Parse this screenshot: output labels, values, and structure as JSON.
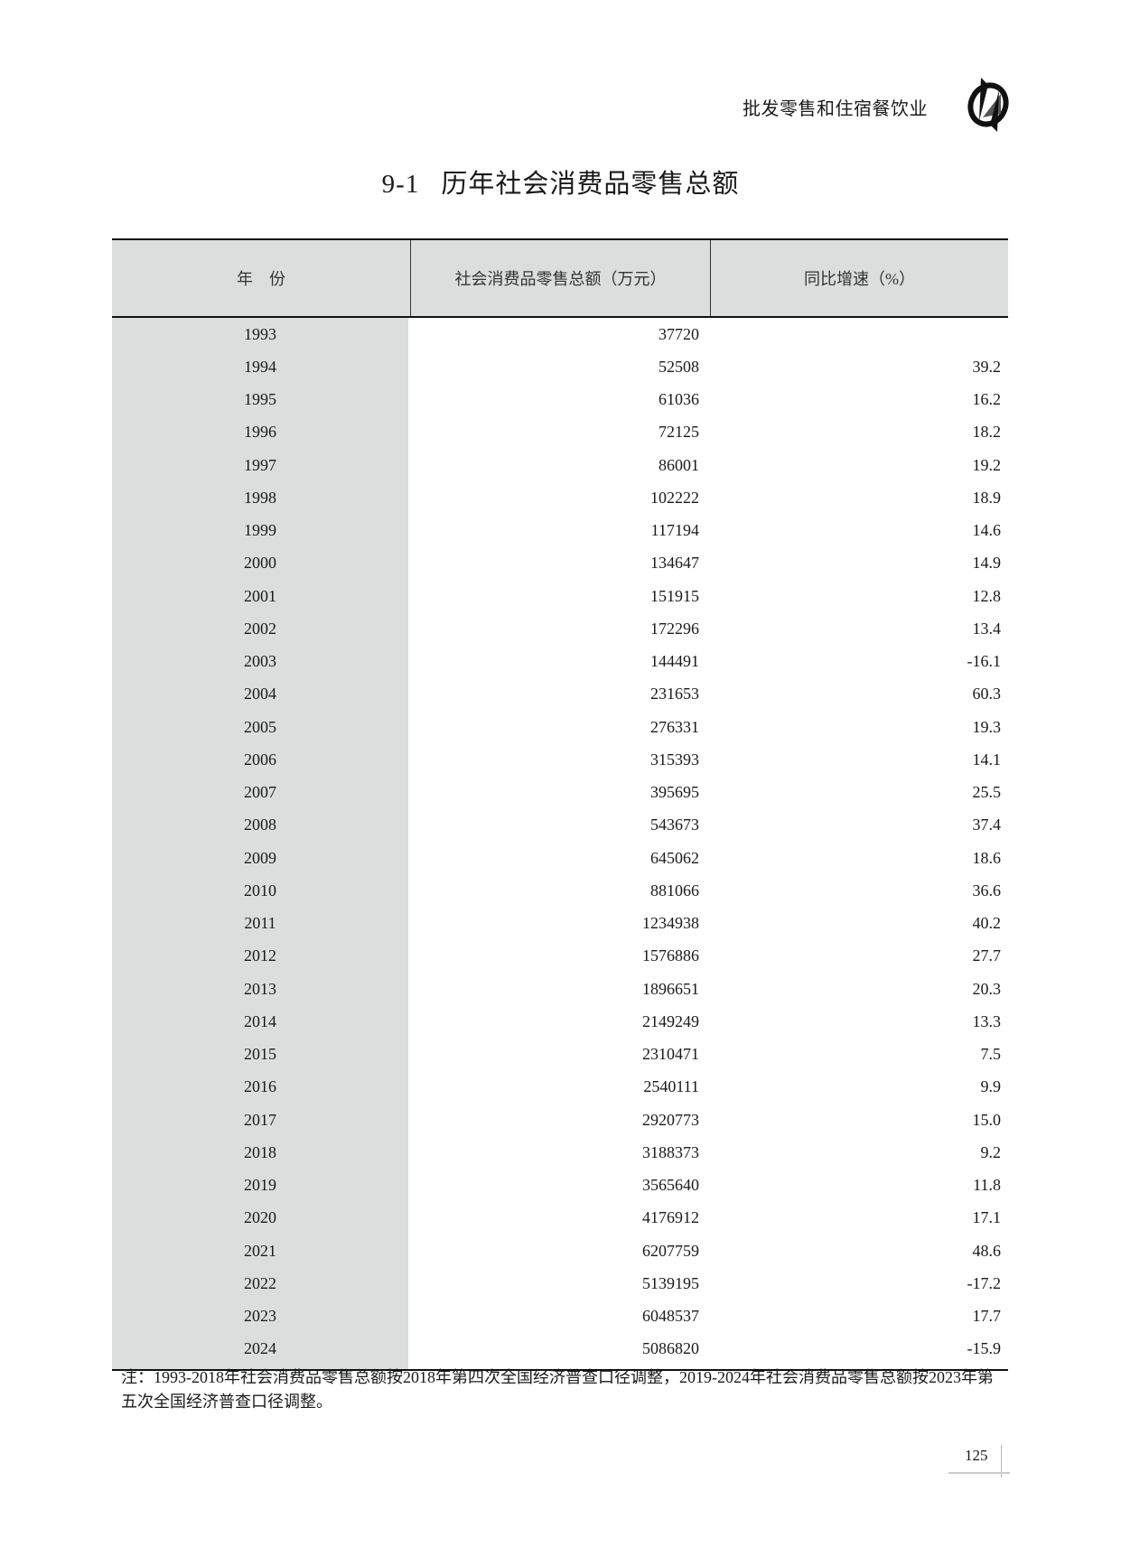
{
  "header": {
    "section_name": "批发零售和住宿餐饮业",
    "logo_icon": "statistics-logo"
  },
  "title": {
    "number": "9-1",
    "text": "历年社会消费品零售总额"
  },
  "table": {
    "columns": [
      "年　份",
      "社会消费品零售总额（万元）",
      "同比增速（%）"
    ],
    "rows": [
      [
        "1993",
        "37720",
        ""
      ],
      [
        "1994",
        "52508",
        "39.2"
      ],
      [
        "1995",
        "61036",
        "16.2"
      ],
      [
        "1996",
        "72125",
        "18.2"
      ],
      [
        "1997",
        "86001",
        "19.2"
      ],
      [
        "1998",
        "102222",
        "18.9"
      ],
      [
        "1999",
        "117194",
        "14.6"
      ],
      [
        "2000",
        "134647",
        "14.9"
      ],
      [
        "2001",
        "151915",
        "12.8"
      ],
      [
        "2002",
        "172296",
        "13.4"
      ],
      [
        "2003",
        "144491",
        "-16.1"
      ],
      [
        "2004",
        "231653",
        "60.3"
      ],
      [
        "2005",
        "276331",
        "19.3"
      ],
      [
        "2006",
        "315393",
        "14.1"
      ],
      [
        "2007",
        "395695",
        "25.5"
      ],
      [
        "2008",
        "543673",
        "37.4"
      ],
      [
        "2009",
        "645062",
        "18.6"
      ],
      [
        "2010",
        "881066",
        "36.6"
      ],
      [
        "2011",
        "1234938",
        "40.2"
      ],
      [
        "2012",
        "1576886",
        "27.7"
      ],
      [
        "2013",
        "1896651",
        "20.3"
      ],
      [
        "2014",
        "2149249",
        "13.3"
      ],
      [
        "2015",
        "2310471",
        "7.5"
      ],
      [
        "2016",
        "2540111",
        "9.9"
      ],
      [
        "2017",
        "2920773",
        "15.0"
      ],
      [
        "2018",
        "3188373",
        "9.2"
      ],
      [
        "2019",
        "3565640",
        "11.8"
      ],
      [
        "2020",
        "4176912",
        "17.1"
      ],
      [
        "2021",
        "6207759",
        "48.6"
      ],
      [
        "2022",
        "5139195",
        "-17.2"
      ],
      [
        "2023",
        "6048537",
        "17.7"
      ],
      [
        "2024",
        "5086820",
        "-15.9"
      ]
    ]
  },
  "note": "注：1993-2018年社会消费品零售总额按2018年第四次全国经济普查口径调整，2019-2024年社会消费品零售总额按2023年第五次全国经济普查口径调整。",
  "page_number": "125"
}
